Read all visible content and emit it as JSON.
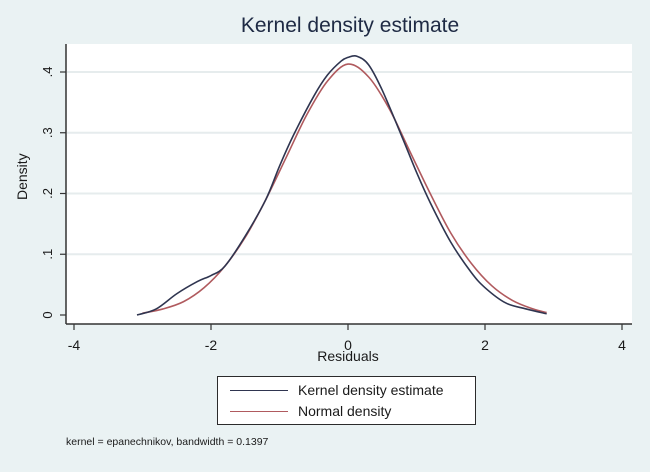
{
  "chart_data": {
    "type": "line",
    "title": "Kernel density estimate",
    "xlabel": "Residuals",
    "ylabel": "Density",
    "xlim": [
      -4,
      4
    ],
    "ylim": [
      0,
      0.42
    ],
    "x_ticks": [
      -4,
      -2,
      0,
      2,
      4
    ],
    "x_tick_labels": [
      "-4",
      "-2",
      "0",
      "2",
      "4"
    ],
    "y_ticks": [
      0,
      0.1,
      0.2,
      0.3,
      0.4
    ],
    "y_tick_labels": [
      "0",
      ".1",
      ".2",
      ".3",
      ".4"
    ],
    "grid": "horizontal",
    "legend_position": "bottom",
    "series": [
      {
        "name": "Kernel density estimate",
        "color": "#2f3550",
        "x": [
          -3.08,
          -2.8,
          -2.5,
          -2.2,
          -2.0,
          -1.8,
          -1.5,
          -1.2,
          -1.0,
          -0.8,
          -0.5,
          -0.3,
          -0.1,
          0.0,
          0.13,
          0.3,
          0.5,
          0.8,
          1.0,
          1.2,
          1.5,
          1.8,
          2.0,
          2.3,
          2.6,
          2.9
        ],
        "values": [
          0.0,
          0.01,
          0.035,
          0.055,
          0.065,
          0.08,
          0.13,
          0.19,
          0.245,
          0.295,
          0.36,
          0.395,
          0.418,
          0.424,
          0.426,
          0.412,
          0.37,
          0.29,
          0.235,
          0.185,
          0.12,
          0.07,
          0.045,
          0.02,
          0.01,
          0.002
        ]
      },
      {
        "name": "Normal density",
        "color": "#b05a5e",
        "x": [
          -3.0,
          -2.7,
          -2.4,
          -2.1,
          -1.8,
          -1.5,
          -1.2,
          -0.9,
          -0.6,
          -0.3,
          0.0,
          0.3,
          0.6,
          0.9,
          1.2,
          1.5,
          1.8,
          2.1,
          2.4,
          2.7,
          2.9
        ],
        "values": [
          0.003,
          0.01,
          0.022,
          0.045,
          0.08,
          0.128,
          0.19,
          0.26,
          0.33,
          0.385,
          0.413,
          0.392,
          0.34,
          0.27,
          0.2,
          0.135,
          0.085,
          0.048,
          0.024,
          0.01,
          0.004
        ]
      }
    ],
    "annotations": [
      "kernel = epanechnikov, bandwidth = 0.1397"
    ]
  },
  "legend": {
    "items": [
      {
        "label": "Kernel density estimate",
        "color": "#2f3550"
      },
      {
        "label": "Normal density",
        "color": "#b05a5e"
      }
    ]
  },
  "note": "kernel = epanechnikov, bandwidth = 0.1397"
}
